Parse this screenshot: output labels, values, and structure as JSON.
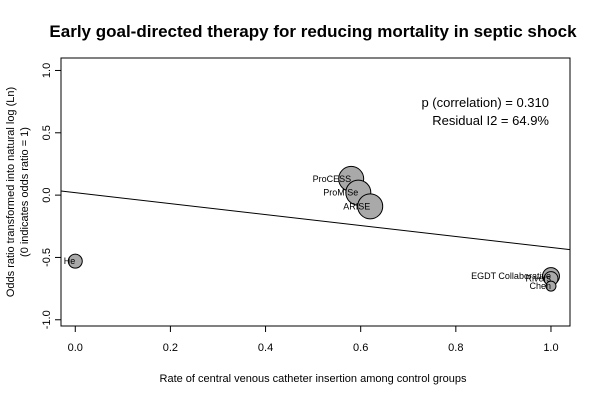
{
  "chart_data": {
    "type": "scatter",
    "title": "Early goal-directed therapy for reducing mortality in septic shock",
    "xlabel": "Rate of central venous catheter insertion among control groups",
    "ylabel_line1": "Odds ratio transformed into natural log (Ln)",
    "ylabel_line2": "(0 indicates odds ratio = 1)",
    "xlim": [
      -0.03,
      1.04
    ],
    "ylim": [
      -1.05,
      1.1
    ],
    "x_ticks": [
      "0.0",
      "0.2",
      "0.4",
      "0.6",
      "0.8",
      "1.0"
    ],
    "y_ticks": [
      "-1.0",
      "-0.5",
      "0.0",
      "0.5",
      "1.0"
    ],
    "points": [
      {
        "label": "He",
        "x": 0.0,
        "y": -0.53,
        "weight": "small"
      },
      {
        "label": "ProCESS",
        "x": 0.58,
        "y": 0.13,
        "weight": "large"
      },
      {
        "label": "ProMISe",
        "x": 0.595,
        "y": 0.02,
        "weight": "large"
      },
      {
        "label": "ARISE",
        "x": 0.62,
        "y": -0.09,
        "weight": "large"
      },
      {
        "label": "EGDT Collaborative",
        "x": 1.0,
        "y": -0.65,
        "weight": "medium"
      },
      {
        "label": "Rivers",
        "x": 1.0,
        "y": -0.67,
        "weight": "small"
      },
      {
        "label": "Chen",
        "x": 1.0,
        "y": -0.73,
        "weight": "tiny"
      }
    ],
    "regression_line": {
      "intercept": 0.02,
      "slope": -0.44
    },
    "annotations": {
      "correlation": "p (correlation) = 0.310",
      "residual": "Residual I2 = 64.9%"
    },
    "colors": {
      "point_fill": "#a9a9a9",
      "point_stroke": "#000000"
    }
  }
}
